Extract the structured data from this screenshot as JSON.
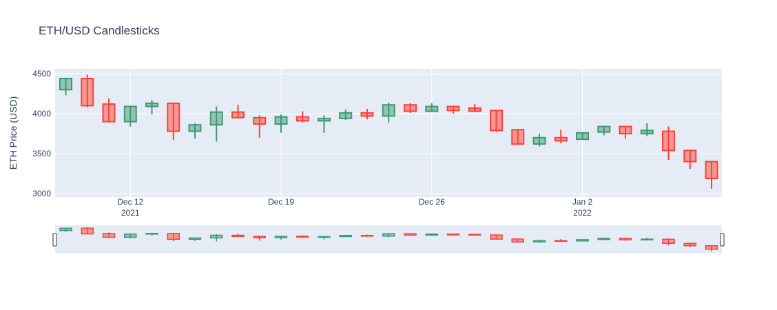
{
  "chart_data": {
    "type": "candlestick",
    "title": "ETH/USD Candlesticks",
    "ylabel": "ETH Price (USD)",
    "xlabel": "",
    "ylim": [
      3000,
      4500
    ],
    "yticks": [
      3000,
      3500,
      4000,
      4500
    ],
    "grid": true,
    "xticks": [
      {
        "day": 12,
        "line1": "Dec 12",
        "line2": "2021"
      },
      {
        "day": 19,
        "line1": "Dec 19",
        "line2": ""
      },
      {
        "day": 26,
        "line1": "Dec 26",
        "line2": ""
      },
      {
        "day": 33,
        "line1": "Jan 2",
        "line2": "2022"
      }
    ],
    "increasing_color": "#3d9970",
    "decreasing_color": "#ff4136",
    "candles": [
      {
        "date": "2021-12-09",
        "open": 4300,
        "high": 4450,
        "low": 4230,
        "close": 4440
      },
      {
        "date": "2021-12-10",
        "open": 4440,
        "high": 4490,
        "low": 4080,
        "close": 4100
      },
      {
        "date": "2021-12-11",
        "open": 4120,
        "high": 4190,
        "low": 3900,
        "close": 3900
      },
      {
        "date": "2021-12-12",
        "open": 3900,
        "high": 4100,
        "low": 3840,
        "close": 4090
      },
      {
        "date": "2021-12-13",
        "open": 4090,
        "high": 4170,
        "low": 3990,
        "close": 4130
      },
      {
        "date": "2021-12-14",
        "open": 4130,
        "high": 4130,
        "low": 3670,
        "close": 3780
      },
      {
        "date": "2021-12-15",
        "open": 3780,
        "high": 3880,
        "low": 3690,
        "close": 3860
      },
      {
        "date": "2021-12-16",
        "open": 3860,
        "high": 4090,
        "low": 3650,
        "close": 4020
      },
      {
        "date": "2021-12-17",
        "open": 4020,
        "high": 4110,
        "low": 3940,
        "close": 3950
      },
      {
        "date": "2021-12-18",
        "open": 3950,
        "high": 3980,
        "low": 3700,
        "close": 3870
      },
      {
        "date": "2021-12-19",
        "open": 3870,
        "high": 3990,
        "low": 3760,
        "close": 3960
      },
      {
        "date": "2021-12-20",
        "open": 3960,
        "high": 4030,
        "low": 3890,
        "close": 3910
      },
      {
        "date": "2021-12-21",
        "open": 3910,
        "high": 3980,
        "low": 3760,
        "close": 3940
      },
      {
        "date": "2021-12-22",
        "open": 3940,
        "high": 4050,
        "low": 3920,
        "close": 4010
      },
      {
        "date": "2021-12-23",
        "open": 4010,
        "high": 4060,
        "low": 3930,
        "close": 3970
      },
      {
        "date": "2021-12-24",
        "open": 3970,
        "high": 4140,
        "low": 3890,
        "close": 4110
      },
      {
        "date": "2021-12-25",
        "open": 4110,
        "high": 4130,
        "low": 4010,
        "close": 4030
      },
      {
        "date": "2021-12-26",
        "open": 4030,
        "high": 4130,
        "low": 4020,
        "close": 4090
      },
      {
        "date": "2021-12-27",
        "open": 4090,
        "high": 4100,
        "low": 4000,
        "close": 4040
      },
      {
        "date": "2021-12-28",
        "open": 4070,
        "high": 4120,
        "low": 4030,
        "close": 4030
      },
      {
        "date": "2021-12-29",
        "open": 4040,
        "high": 4040,
        "low": 3770,
        "close": 3790
      },
      {
        "date": "2021-12-30",
        "open": 3800,
        "high": 3810,
        "low": 3610,
        "close": 3620
      },
      {
        "date": "2021-12-31",
        "open": 3620,
        "high": 3750,
        "low": 3590,
        "close": 3700
      },
      {
        "date": "2022-01-01",
        "open": 3700,
        "high": 3800,
        "low": 3630,
        "close": 3660
      },
      {
        "date": "2022-01-02",
        "open": 3680,
        "high": 3760,
        "low": 3680,
        "close": 3760
      },
      {
        "date": "2022-01-03",
        "open": 3770,
        "high": 3850,
        "low": 3730,
        "close": 3840
      },
      {
        "date": "2022-01-04",
        "open": 3840,
        "high": 3840,
        "low": 3690,
        "close": 3750
      },
      {
        "date": "2022-01-05",
        "open": 3750,
        "high": 3880,
        "low": 3720,
        "close": 3790
      },
      {
        "date": "2022-01-06",
        "open": 3780,
        "high": 3840,
        "low": 3420,
        "close": 3540
      },
      {
        "date": "2022-01-07",
        "open": 3540,
        "high": 3540,
        "low": 3310,
        "close": 3400
      },
      {
        "date": "2022-01-08",
        "open": 3400,
        "high": 3410,
        "low": 3060,
        "close": 3190
      }
    ]
  }
}
